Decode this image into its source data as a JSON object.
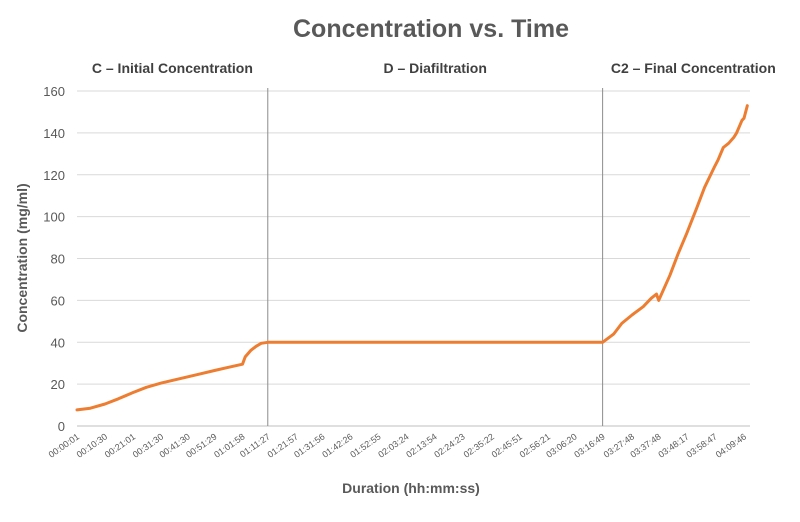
{
  "chart_data": {
    "type": "line",
    "title": "Concentration vs. Time",
    "xlabel": "Duration (hh:mm:ss)",
    "ylabel": "Concentration (mg/ml)",
    "ylim": [
      0,
      160
    ],
    "yticks": [
      0,
      20,
      40,
      60,
      80,
      100,
      120,
      140,
      160
    ],
    "x_tick_labels": [
      "00:00:01",
      "00:10:30",
      "00:21:01",
      "00:31:30",
      "00:41:30",
      "00:51:29",
      "01:01:58",
      "01:11:27",
      "01:21:57",
      "01:31:56",
      "01:42:26",
      "01:52:55",
      "02:03:24",
      "02:13:54",
      "02:24:23",
      "02:35:22",
      "02:45:51",
      "02:56:21",
      "03:06:20",
      "03:16:49",
      "03:27:48",
      "03:37:48",
      "03:48:17",
      "03:58:47",
      "04:09:46"
    ],
    "grid": true,
    "phases": [
      {
        "label": "C – Initial Concentration",
        "start": "00:00:01",
        "end": "01:11:27"
      },
      {
        "label": "D – Diafiltration",
        "start": "01:11:27",
        "end": "03:16:49"
      },
      {
        "label": "C2 – Final Concentration",
        "start": "03:16:49",
        "end": "04:12:00"
      }
    ],
    "series": [
      {
        "color": "#ED7D31",
        "x": [
          "00:00:01",
          "00:05:00",
          "00:10:30",
          "00:15:30",
          "00:21:01",
          "00:26:00",
          "00:31:30",
          "00:36:30",
          "00:41:30",
          "00:46:30",
          "00:51:29",
          "00:56:30",
          "01:01:58",
          "01:03:00",
          "01:05:00",
          "01:07:00",
          "01:09:00",
          "01:11:27",
          "01:21:57",
          "01:31:56",
          "01:42:26",
          "01:52:55",
          "02:03:24",
          "02:13:54",
          "02:24:23",
          "02:35:22",
          "02:45:51",
          "02:56:21",
          "03:06:20",
          "03:16:49",
          "03:21:00",
          "03:24:00",
          "03:27:48",
          "03:32:00",
          "03:35:00",
          "03:37:00",
          "03:37:48",
          "03:42:00",
          "03:45:00",
          "03:48:17",
          "03:52:00",
          "03:55:00",
          "03:58:47",
          "04:00:00",
          "04:02:00",
          "04:04:00",
          "04:06:00",
          "04:07:00",
          "04:09:00",
          "04:09:46",
          "04:11:00"
        ],
        "values": [
          7.7,
          8.5,
          10.5,
          13,
          16,
          18.5,
          20.5,
          22,
          23.5,
          25,
          26.5,
          28,
          29.5,
          33,
          36,
          38,
          39.5,
          40,
          40,
          40,
          40,
          40,
          40,
          40,
          40,
          40,
          40,
          40,
          40,
          40,
          44,
          49,
          53,
          57,
          61,
          63,
          60,
          72,
          82,
          92,
          104,
          114,
          124,
          127,
          133,
          135,
          138,
          140,
          146,
          147,
          153
        ]
      }
    ]
  }
}
